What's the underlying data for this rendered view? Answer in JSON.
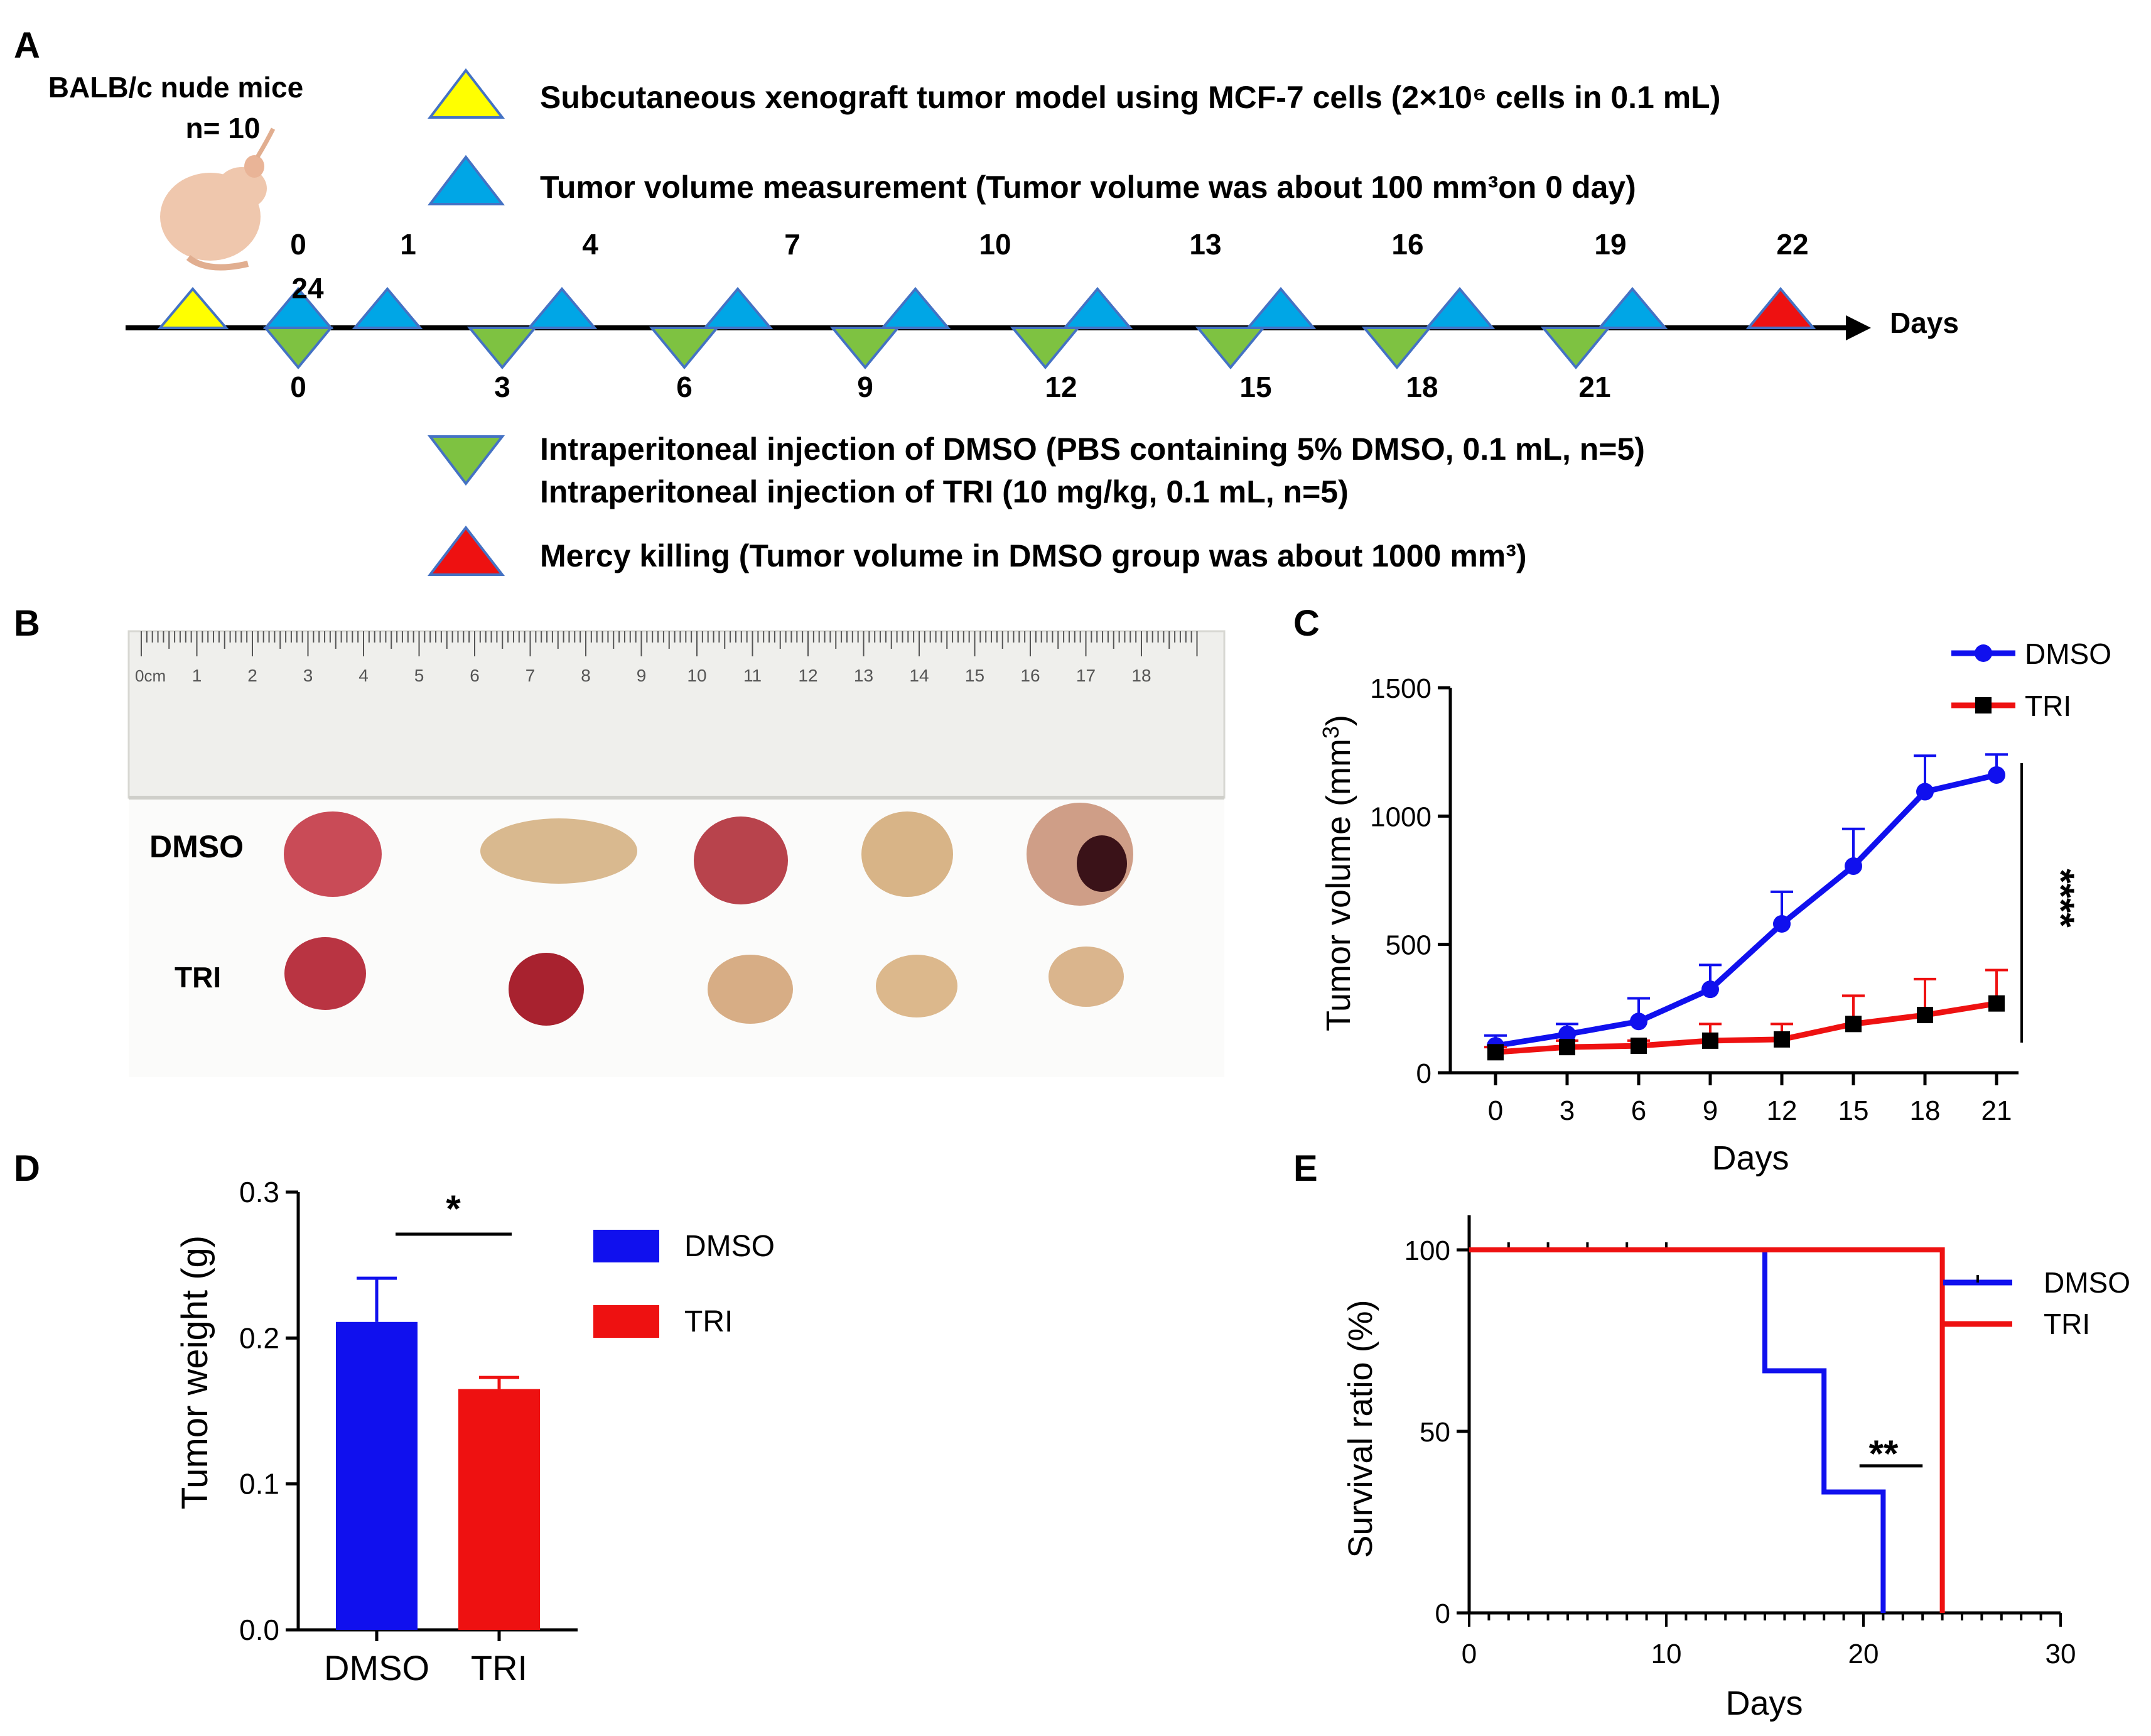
{
  "colors": {
    "blue": "#1010ee",
    "red": "#ee1111",
    "black": "#000000",
    "tri_yellow": "#ffff00",
    "tri_blue": "#00a6e6",
    "tri_green": "#7ec241",
    "tri_red": "#ee1111",
    "tri_stroke": "#4472c4",
    "ruler": "#f2f2f0",
    "tumor_red": "#c0404a",
    "tumor_tan": "#d9b58a"
  },
  "panel_labels": {
    "a": "A",
    "b": "B",
    "c": "C",
    "d": "D",
    "e": "E"
  },
  "panel_a": {
    "mice_title": "BALB/c nude mice",
    "mice_n": "n= 10",
    "legend": {
      "yellow": "Subcutaneous xenograft tumor model using MCF-7 cells (2×10⁶ cells in 0.1 mL)",
      "blue": "Tumor volume measurement (Tumor volume was about 100 mm³on 0 day)",
      "green_dmso": "Intraperitoneal injection of DMSO (PBS containing 5% DMSO, 0.1 mL, n=5)",
      "green_tri": "Intraperitoneal injection of TRI (10 mg/kg, 0.1 mL, n=5)",
      "red": "Mercy killing (Tumor volume in DMSO group was about 1000 mm³)"
    },
    "axis_label": "Days",
    "measure_days": [
      "0",
      "1",
      "4",
      "7",
      "10",
      "13",
      "16",
      "19",
      "22"
    ],
    "measure_extra": "24",
    "injection_days": [
      "0",
      "3",
      "6",
      "9",
      "12",
      "15",
      "18",
      "21"
    ]
  },
  "panel_b": {
    "row_dmso": "DMSO",
    "row_tri": "TRI",
    "ruler_zero": "0cm",
    "ruler_numbers": [
      "1",
      "2",
      "3",
      "4",
      "5",
      "6",
      "7",
      "8",
      "9",
      "10",
      "11",
      "12",
      "13",
      "14",
      "15",
      "16",
      "17",
      "18"
    ]
  },
  "chart_data": [
    {
      "panel": "C",
      "type": "line",
      "xlabel": "Days",
      "ylabel": "Tumor volume (mm³)",
      "ylabel_main": "Tumor volume (mm",
      "ylabel_sup": "3",
      "ylabel_close": ")",
      "x": [
        0,
        3,
        6,
        9,
        12,
        15,
        18,
        21
      ],
      "xticks": [
        "0",
        "3",
        "6",
        "9",
        "12",
        "15",
        "18",
        "21"
      ],
      "yticks": [
        "0",
        "500",
        "1000",
        "1500"
      ],
      "ylim": [
        0,
        1500
      ],
      "series": [
        {
          "name": "DMSO",
          "values": [
            105,
            150,
            200,
            325,
            580,
            805,
            1095,
            1160
          ],
          "errors": [
            40,
            40,
            90,
            95,
            125,
            145,
            140,
            80
          ]
        },
        {
          "name": "TRI",
          "values": [
            80,
            100,
            105,
            125,
            130,
            190,
            225,
            270
          ],
          "errors": [
            20,
            25,
            20,
            65,
            60,
            110,
            140,
            130
          ]
        }
      ],
      "significance": "****",
      "legend_position": "top-right"
    },
    {
      "panel": "D",
      "type": "bar",
      "categories": [
        "DMSO",
        "TRI"
      ],
      "values": [
        0.211,
        0.165
      ],
      "errors": [
        0.03,
        0.008
      ],
      "ylabel": "Tumor weight (g)",
      "yticks": [
        "0.0",
        "0.1",
        "0.2",
        "0.3"
      ],
      "ylim": [
        0,
        0.3
      ],
      "legend": [
        "DMSO",
        "TRI"
      ],
      "significance": "*"
    },
    {
      "panel": "E",
      "type": "line",
      "subtype": "survival",
      "xlabel": "Days",
      "ylabel": "Survival ratio (%)",
      "xticks": [
        "0",
        "10",
        "20",
        "30"
      ],
      "yticks": [
        "0",
        "50",
        "100"
      ],
      "xlim": [
        0,
        30
      ],
      "ylim": [
        0,
        100
      ],
      "series": [
        {
          "name": "DMSO",
          "steps": [
            [
              0,
              100
            ],
            [
              15,
              100
            ],
            [
              15,
              66.7
            ],
            [
              18,
              66.7
            ],
            [
              18,
              33.3
            ],
            [
              21,
              33.3
            ],
            [
              21,
              0
            ]
          ],
          "censor_ticks": [
            2,
            4,
            6,
            8,
            10
          ]
        },
        {
          "name": "TRI",
          "steps": [
            [
              0,
              100
            ],
            [
              24,
              100
            ],
            [
              24,
              0
            ]
          ]
        }
      ],
      "significance": "**",
      "legend_position": "right"
    }
  ]
}
